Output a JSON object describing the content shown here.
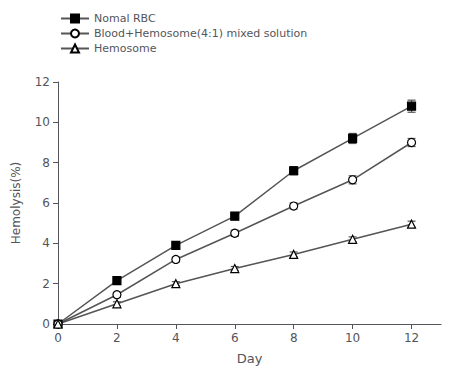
{
  "chart_data": {
    "type": "line",
    "xlabel": "Day",
    "ylabel": "Hemolysis(%)",
    "x": [
      0,
      2,
      4,
      6,
      8,
      10,
      12
    ],
    "series": [
      {
        "name": "Nomal RBC",
        "color": "#555555",
        "marker": "filled_square",
        "values": [
          0,
          2.15,
          3.9,
          5.35,
          7.6,
          9.2,
          10.8
        ],
        "errors": [
          0,
          0.15,
          0.18,
          0.18,
          0.2,
          0.25,
          0.3
        ]
      },
      {
        "name": "Blood+Hemosome(4:1) mixed solution",
        "color": "#555555",
        "marker": "open_circle",
        "values": [
          0,
          1.45,
          3.2,
          4.5,
          5.85,
          7.15,
          9.0
        ],
        "errors": [
          0,
          0.12,
          0.12,
          0.15,
          0.15,
          0.2,
          0.2
        ]
      },
      {
        "name": "Hemosome",
        "color": "#555555",
        "marker": "open_triangle",
        "values": [
          0,
          1.0,
          2.0,
          2.75,
          3.45,
          4.2,
          4.95
        ],
        "errors": [
          0,
          0.1,
          0.1,
          0.1,
          0.12,
          0.12,
          0.15
        ]
      }
    ],
    "xlim": [
      0,
      13
    ],
    "ylim": [
      0,
      12
    ],
    "xticks": [
      0,
      2,
      4,
      6,
      8,
      10,
      12
    ],
    "yticks": [
      0,
      2,
      4,
      6,
      8,
      10,
      12
    ],
    "grid": false,
    "legend": "upper left"
  }
}
